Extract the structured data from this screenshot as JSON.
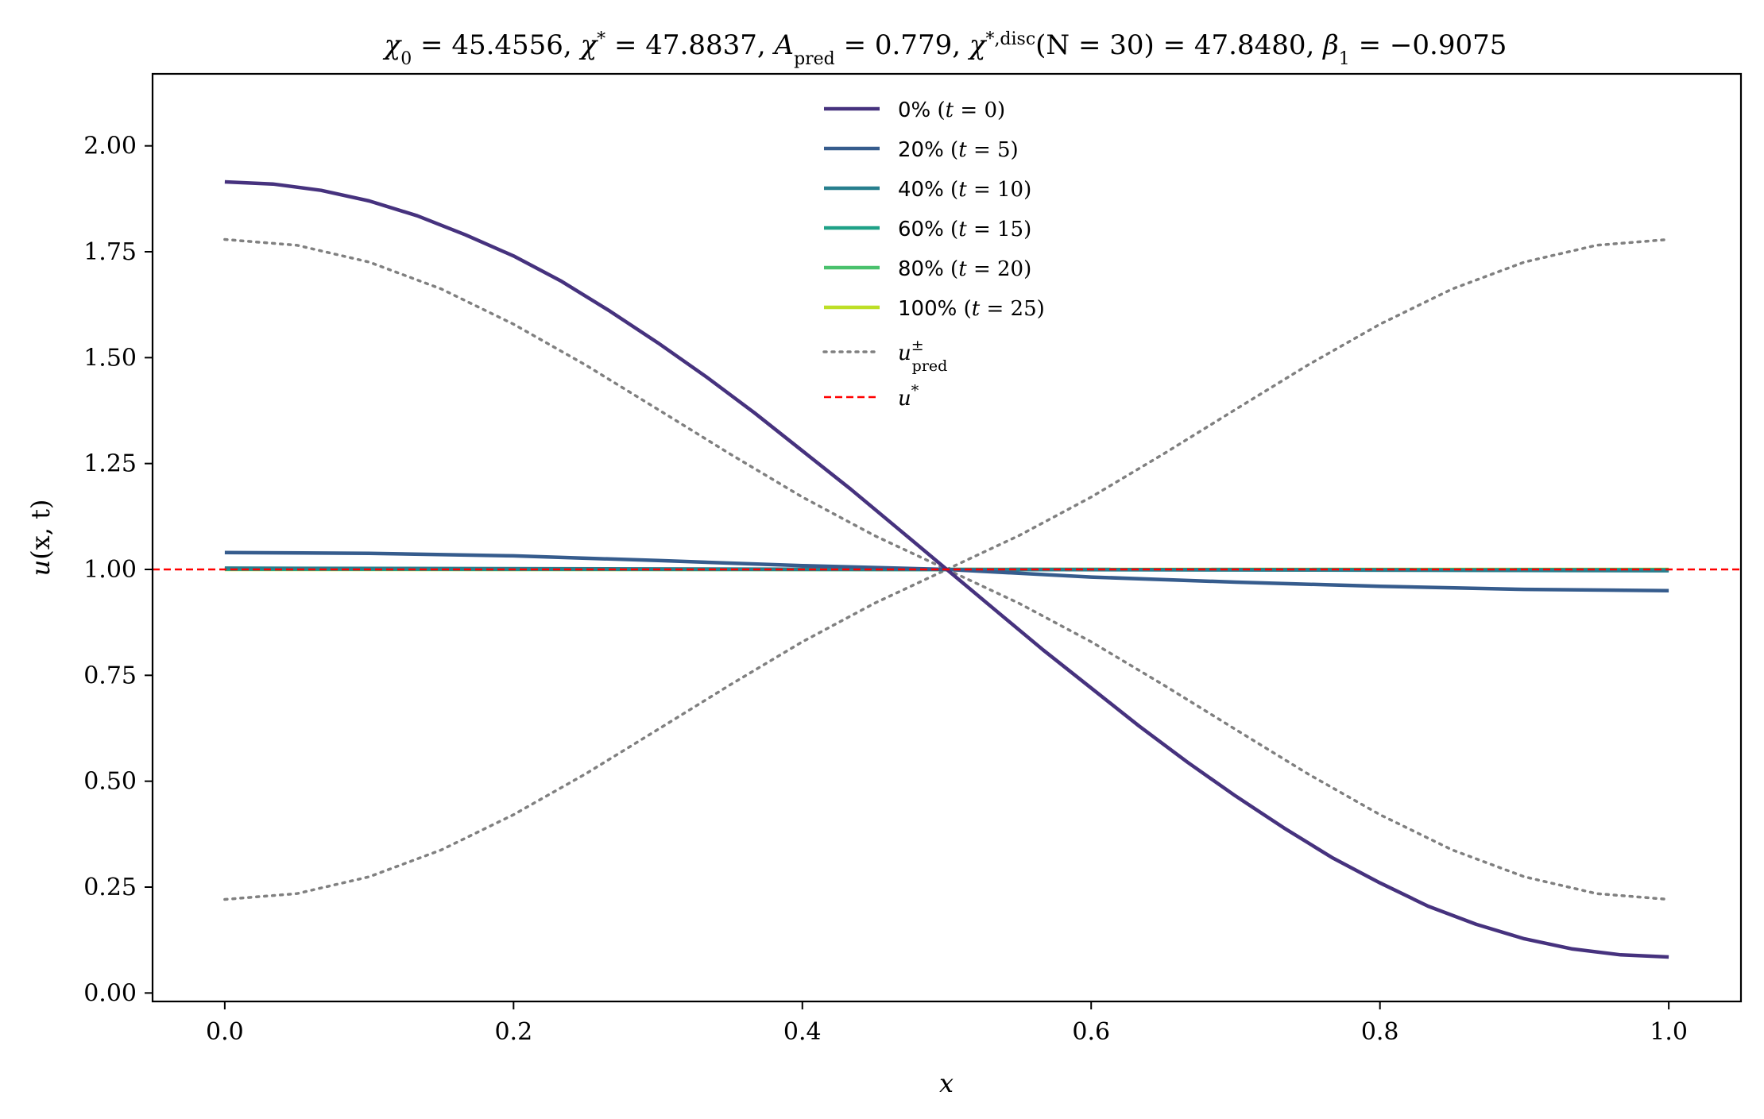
{
  "chart_data": {
    "type": "line",
    "title": "χ₀ = 45.4556,  χ* = 47.8837,  A_pred = 0.779,  χ*,disc(N = 30) = 47.8480,  β₁ = −0.9075",
    "xlabel": "x",
    "ylabel": "u(x, t)",
    "xlim": [
      -0.05,
      1.05
    ],
    "ylim": [
      -0.02,
      2.17
    ],
    "x_ticks": [
      0.0,
      0.2,
      0.4,
      0.6,
      0.8,
      1.0
    ],
    "y_ticks": [
      0.0,
      0.25,
      0.5,
      0.75,
      1.0,
      1.25,
      1.5,
      1.75,
      2.0
    ],
    "x_tick_labels": [
      "0.0",
      "0.2",
      "0.4",
      "0.6",
      "0.8",
      "1.0"
    ],
    "y_tick_labels": [
      "0.00",
      "0.25",
      "0.50",
      "0.75",
      "1.00",
      "1.25",
      "1.50",
      "1.75",
      "2.00"
    ],
    "grid": false,
    "legend_position": "top-center",
    "series": [
      {
        "name": "0% (t = 0)",
        "color": "#46327e",
        "style": "solid",
        "x": [
          0.0,
          0.0333,
          0.0667,
          0.1,
          0.1333,
          0.1667,
          0.2,
          0.2333,
          0.2667,
          0.3,
          0.3333,
          0.3667,
          0.4,
          0.4333,
          0.4667,
          0.5,
          0.5333,
          0.5667,
          0.6,
          0.6333,
          0.6667,
          0.7,
          0.7333,
          0.7667,
          0.8,
          0.8333,
          0.8667,
          0.9,
          0.9333,
          0.9667,
          1.0
        ],
        "y": [
          1.915,
          1.91,
          1.895,
          1.87,
          1.835,
          1.79,
          1.74,
          1.68,
          1.61,
          1.535,
          1.455,
          1.37,
          1.28,
          1.19,
          1.095,
          1.0,
          0.905,
          0.81,
          0.72,
          0.63,
          0.545,
          0.465,
          0.39,
          0.32,
          0.26,
          0.205,
          0.162,
          0.128,
          0.104,
          0.09,
          0.085
        ]
      },
      {
        "name": "20% (t = 5)",
        "color": "#365c8d",
        "style": "solid",
        "x": [
          0.0,
          0.1,
          0.2,
          0.3,
          0.4,
          0.5,
          0.6,
          0.7,
          0.8,
          0.9,
          1.0
        ],
        "y": [
          1.04,
          1.038,
          1.032,
          1.021,
          1.009,
          1.0,
          0.982,
          0.97,
          0.96,
          0.953,
          0.95
        ]
      },
      {
        "name": "40% (t = 10)",
        "color": "#277f8e",
        "style": "solid",
        "x": [
          0.0,
          1.0
        ],
        "y": [
          1.003,
          0.997
        ]
      },
      {
        "name": "60% (t = 15)",
        "color": "#1fa187",
        "style": "solid",
        "x": [
          0.0,
          1.0
        ],
        "y": [
          1.001,
          0.999
        ]
      },
      {
        "name": "80% (t = 20)",
        "color": "#4ac16d",
        "style": "solid",
        "x": [
          0.0,
          1.0
        ],
        "y": [
          1.0005,
          0.9995
        ]
      },
      {
        "name": "100% (t = 25)",
        "color": "#bddf26",
        "style": "solid",
        "x": [
          0.0,
          1.0
        ],
        "y": [
          1.0,
          1.0
        ]
      },
      {
        "name": "u±_pred",
        "color": "#808080",
        "style": "dotted",
        "x": [
          0.0,
          0.05,
          0.1,
          0.15,
          0.2,
          0.25,
          0.3,
          0.35,
          0.4,
          0.45,
          0.5,
          0.55,
          0.6,
          0.65,
          0.7,
          0.75,
          0.8,
          0.85,
          0.9,
          0.95,
          1.0
        ],
        "y_upper": [
          1.779,
          1.7654,
          1.7256,
          1.6621,
          1.579,
          1.4824,
          1.3779,
          1.2725,
          1.1708,
          1.0798,
          1.0,
          0.9202,
          0.8292,
          0.7275,
          0.6221,
          0.5176,
          0.421,
          0.3379,
          0.2744,
          0.2346,
          0.221
        ],
        "y_lower": [
          0.221,
          0.2346,
          0.2744,
          0.3379,
          0.421,
          0.5176,
          0.6221,
          0.7275,
          0.8292,
          0.9202,
          1.0,
          1.0798,
          1.1708,
          1.2725,
          1.3779,
          1.4824,
          1.579,
          1.6621,
          1.7256,
          1.7654,
          1.779
        ]
      },
      {
        "name": "u*",
        "color": "#ff0000",
        "style": "dashed",
        "y_constant": 1.0
      }
    ],
    "legend_labels": {
      "s0": {
        "pct": "0%",
        "t": "t",
        "eq": "= 0"
      },
      "s1": {
        "pct": "20%",
        "t": "t",
        "eq": "= 5"
      },
      "s2": {
        "pct": "40%",
        "t": "t",
        "eq": "= 10"
      },
      "s3": {
        "pct": "60%",
        "t": "t",
        "eq": "= 15"
      },
      "s4": {
        "pct": "80%",
        "t": "t",
        "eq": "= 20"
      },
      "s5": {
        "pct": "100%",
        "t": "t",
        "eq": "= 25"
      },
      "pred": {
        "base": "u",
        "sup": "±",
        "sub": "pred"
      },
      "star": {
        "base": "u",
        "sup": "*"
      }
    },
    "title_parts": {
      "chi0_sym": "χ",
      "chi0_sub": "0",
      "chi0_val": " = 45.4556,  ",
      "chis_sym": "χ",
      "chis_sup": "*",
      "chis_val": " = 47.8837,  ",
      "a_sym": "A",
      "a_sub": "pred",
      "a_val": " = 0.779,  ",
      "chid_sym": "χ",
      "chid_sup": "*,disc",
      "chid_val": "(N = 30) = 47.8480,  ",
      "beta_sym": "β",
      "beta_sub": "1",
      "beta_val": " = −0.9075"
    },
    "ylabel_parts": {
      "u": "u",
      "args": "(x, t)"
    }
  }
}
